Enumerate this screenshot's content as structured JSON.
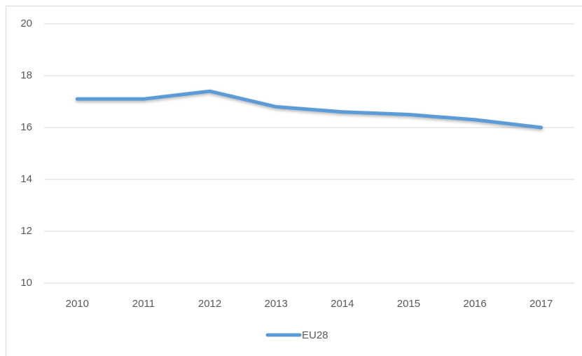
{
  "chart_data": {
    "type": "line",
    "categories": [
      "2010",
      "2011",
      "2012",
      "2013",
      "2014",
      "2015",
      "2016",
      "2017"
    ],
    "series": [
      {
        "name": "EU28",
        "color": "#5b9bd5",
        "values": [
          17.1,
          17.1,
          17.4,
          16.8,
          16.6,
          16.5,
          16.3,
          16.0
        ]
      }
    ],
    "ylim": [
      10,
      20
    ],
    "yticks": [
      10,
      12,
      14,
      16,
      18,
      20
    ],
    "grid": true,
    "legend": "bottom"
  }
}
